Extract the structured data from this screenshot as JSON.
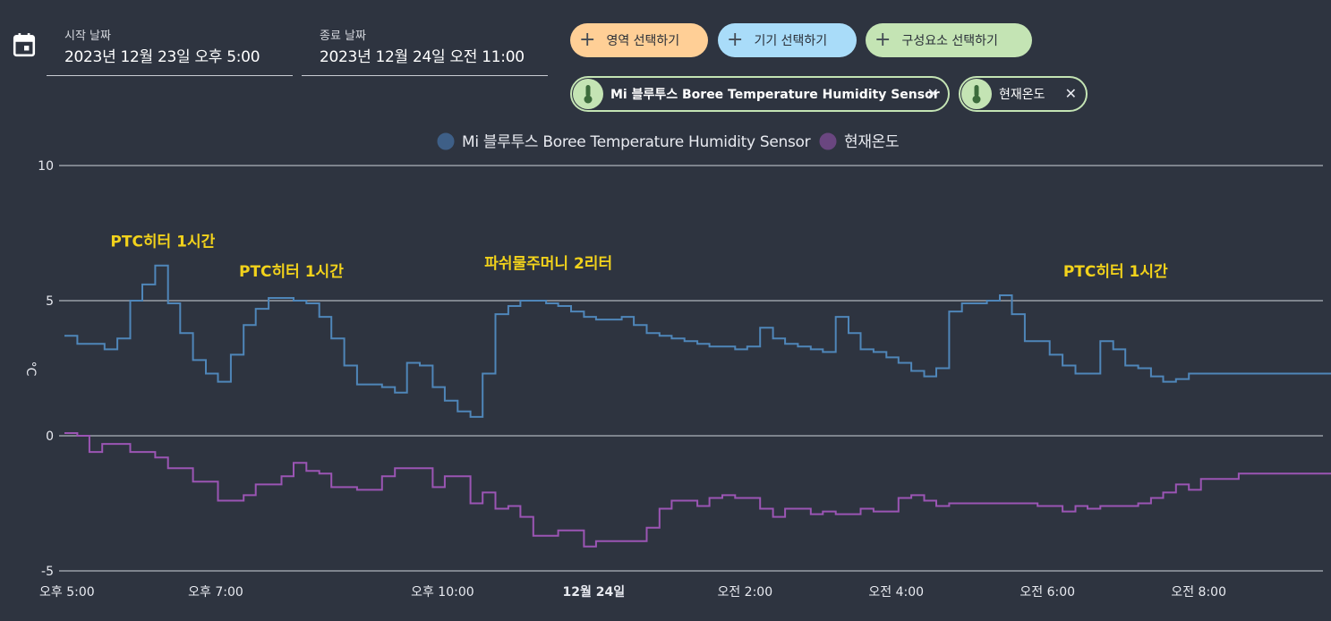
{
  "filters": {
    "start": {
      "label": "시작 날짜",
      "value": "2023년 12월 23일 오후 5:00"
    },
    "end": {
      "label": "종료 날짜",
      "value": "2023년 12월 24일 오전 11:00"
    },
    "pills": {
      "area": "영역 선택하기",
      "device": "기기 선택하기",
      "component": "구성요소 선택하기"
    },
    "chips": {
      "sensor": "Mi 블루투스 Boree Temperature Humidity Sensor",
      "temp": "현재온도"
    },
    "colors": {
      "area": "#ffcf96",
      "device": "#a9dcf9",
      "component": "#c4e4b4"
    },
    "icons": {
      "calendar": "calendar-icon",
      "plus": "plus-icon",
      "thermometer": "thermometer-icon",
      "close": "close-icon"
    }
  },
  "chart_data": {
    "type": "line",
    "step": true,
    "ylabel": "°C",
    "ylim": [
      -5,
      10
    ],
    "yticks": [
      10,
      5,
      0,
      -5
    ],
    "xlim": [
      17,
      33.75
    ],
    "xticks": [
      {
        "x": 17,
        "label": "오후 5:00",
        "bold": false
      },
      {
        "x": 19,
        "label": "오후 7:00",
        "bold": false
      },
      {
        "x": 22,
        "label": "오후 10:00",
        "bold": false
      },
      {
        "x": 24,
        "label": "12월 24일",
        "bold": true
      },
      {
        "x": 26,
        "label": "오전 2:00",
        "bold": false
      },
      {
        "x": 28,
        "label": "오전 4:00",
        "bold": false
      },
      {
        "x": 30,
        "label": "오전 6:00",
        "bold": false
      },
      {
        "x": 32,
        "label": "오전 8:00",
        "bold": false
      }
    ],
    "legend": [
      {
        "name": "Mi 블루투스 Boree Temperature Humidity Sensor",
        "color": "#3e5f87"
      },
      {
        "name": "현재온도",
        "color": "#6a4680"
      }
    ],
    "legend_position": "top-center",
    "grid": true,
    "annotations": [
      {
        "text": "PTC히터 1시간",
        "x": 18.3,
        "y": 7.0
      },
      {
        "text": "PTC히터 1시간",
        "x": 20.0,
        "y": 5.9
      },
      {
        "text": "파쉬물주머니 2리터",
        "x": 23.4,
        "y": 6.2
      },
      {
        "text": "PTC히터 1시간",
        "x": 30.9,
        "y": 5.9
      }
    ],
    "series": [
      {
        "name": "Mi 블루투스 Boree Temperature Humidity Sensor",
        "color": "#4f86b9",
        "points": [
          [
            17.0,
            3.7
          ],
          [
            17.17,
            3.4
          ],
          [
            17.5,
            3.4
          ],
          [
            17.53,
            3.2
          ],
          [
            17.7,
            3.6
          ],
          [
            17.87,
            5.0
          ],
          [
            18.03,
            5.6
          ],
          [
            18.2,
            6.3
          ],
          [
            18.37,
            4.9
          ],
          [
            18.53,
            3.8
          ],
          [
            18.7,
            2.8
          ],
          [
            18.87,
            2.3
          ],
          [
            19.03,
            2.0
          ],
          [
            19.2,
            3.0
          ],
          [
            19.37,
            4.1
          ],
          [
            19.53,
            4.7
          ],
          [
            19.7,
            5.1
          ],
          [
            20.03,
            5.0
          ],
          [
            20.2,
            4.9
          ],
          [
            20.37,
            4.4
          ],
          [
            20.53,
            3.6
          ],
          [
            20.7,
            2.6
          ],
          [
            20.87,
            1.9
          ],
          [
            21.2,
            1.8
          ],
          [
            21.37,
            1.6
          ],
          [
            21.53,
            2.7
          ],
          [
            21.7,
            2.6
          ],
          [
            21.87,
            1.8
          ],
          [
            22.03,
            1.3
          ],
          [
            22.2,
            0.9
          ],
          [
            22.37,
            0.7
          ],
          [
            22.53,
            2.3
          ],
          [
            22.7,
            4.5
          ],
          [
            22.87,
            4.8
          ],
          [
            23.03,
            5.0
          ],
          [
            23.37,
            4.9
          ],
          [
            23.53,
            4.8
          ],
          [
            23.7,
            4.6
          ],
          [
            23.87,
            4.4
          ],
          [
            24.03,
            4.3
          ],
          [
            24.37,
            4.4
          ],
          [
            24.53,
            4.1
          ],
          [
            24.7,
            3.8
          ],
          [
            24.87,
            3.7
          ],
          [
            25.03,
            3.6
          ],
          [
            25.2,
            3.5
          ],
          [
            25.37,
            3.4
          ],
          [
            25.53,
            3.3
          ],
          [
            25.87,
            3.2
          ],
          [
            26.03,
            3.3
          ],
          [
            26.2,
            4.0
          ],
          [
            26.37,
            3.6
          ],
          [
            26.53,
            3.4
          ],
          [
            26.7,
            3.3
          ],
          [
            26.87,
            3.2
          ],
          [
            27.03,
            3.1
          ],
          [
            27.2,
            4.4
          ],
          [
            27.37,
            3.8
          ],
          [
            27.53,
            3.2
          ],
          [
            27.7,
            3.1
          ],
          [
            27.87,
            2.9
          ],
          [
            28.03,
            2.7
          ],
          [
            28.2,
            2.4
          ],
          [
            28.37,
            2.2
          ],
          [
            28.53,
            2.5
          ],
          [
            28.7,
            4.6
          ],
          [
            28.87,
            4.9
          ],
          [
            29.2,
            5.0
          ],
          [
            29.37,
            5.2
          ],
          [
            29.53,
            4.5
          ],
          [
            29.7,
            3.5
          ],
          [
            30.03,
            3.0
          ],
          [
            30.2,
            2.6
          ],
          [
            30.37,
            2.3
          ],
          [
            30.7,
            3.5
          ],
          [
            30.87,
            3.2
          ],
          [
            31.03,
            2.6
          ],
          [
            31.2,
            2.5
          ],
          [
            31.37,
            2.2
          ],
          [
            31.53,
            2.0
          ],
          [
            31.7,
            2.1
          ],
          [
            31.87,
            2.3
          ],
          [
            33.75,
            2.3
          ]
        ]
      },
      {
        "name": "현재온도",
        "color": "#9b55b4",
        "points": [
          [
            17.0,
            0.1
          ],
          [
            17.17,
            0.0
          ],
          [
            17.33,
            -0.6
          ],
          [
            17.5,
            -0.3
          ],
          [
            17.87,
            -0.6
          ],
          [
            18.2,
            -0.8
          ],
          [
            18.37,
            -1.2
          ],
          [
            18.7,
            -1.7
          ],
          [
            19.03,
            -2.4
          ],
          [
            19.37,
            -2.2
          ],
          [
            19.53,
            -1.8
          ],
          [
            19.87,
            -1.5
          ],
          [
            20.03,
            -1.0
          ],
          [
            20.2,
            -1.3
          ],
          [
            20.37,
            -1.4
          ],
          [
            20.53,
            -1.9
          ],
          [
            20.87,
            -2.0
          ],
          [
            21.2,
            -1.5
          ],
          [
            21.37,
            -1.2
          ],
          [
            21.87,
            -1.9
          ],
          [
            22.03,
            -1.5
          ],
          [
            22.37,
            -2.5
          ],
          [
            22.53,
            -2.1
          ],
          [
            22.7,
            -2.7
          ],
          [
            22.87,
            -2.6
          ],
          [
            23.03,
            -3.0
          ],
          [
            23.2,
            -3.7
          ],
          [
            23.53,
            -3.5
          ],
          [
            23.87,
            -4.1
          ],
          [
            24.03,
            -3.9
          ],
          [
            24.7,
            -3.4
          ],
          [
            24.87,
            -2.7
          ],
          [
            25.03,
            -2.4
          ],
          [
            25.37,
            -2.6
          ],
          [
            25.53,
            -2.3
          ],
          [
            25.7,
            -2.2
          ],
          [
            25.87,
            -2.3
          ],
          [
            26.2,
            -2.7
          ],
          [
            26.37,
            -3.0
          ],
          [
            26.53,
            -2.7
          ],
          [
            26.87,
            -2.9
          ],
          [
            27.03,
            -2.8
          ],
          [
            27.2,
            -2.9
          ],
          [
            27.53,
            -2.7
          ],
          [
            27.7,
            -2.8
          ],
          [
            28.03,
            -2.3
          ],
          [
            28.2,
            -2.2
          ],
          [
            28.37,
            -2.4
          ],
          [
            28.53,
            -2.6
          ],
          [
            28.7,
            -2.5
          ],
          [
            29.87,
            -2.6
          ],
          [
            30.2,
            -2.8
          ],
          [
            30.37,
            -2.6
          ],
          [
            30.53,
            -2.7
          ],
          [
            30.7,
            -2.6
          ],
          [
            31.2,
            -2.5
          ],
          [
            31.37,
            -2.3
          ],
          [
            31.53,
            -2.1
          ],
          [
            31.7,
            -1.8
          ],
          [
            31.87,
            -2.0
          ],
          [
            32.03,
            -1.6
          ],
          [
            32.53,
            -1.4
          ],
          [
            33.75,
            -1.4
          ]
        ]
      }
    ]
  }
}
